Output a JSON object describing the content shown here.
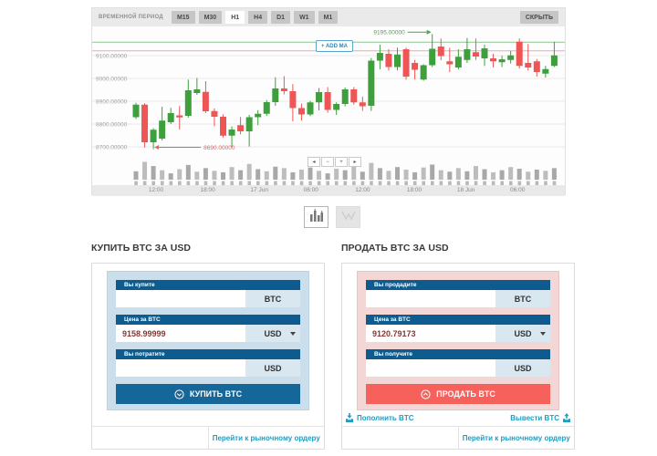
{
  "toolbar": {
    "label": "ВРЕМЕННОЙ ПЕРИОД",
    "periods": [
      "M15",
      "M30",
      "H1",
      "H4",
      "D1",
      "W1",
      "M1"
    ],
    "active_period": "H1",
    "hide_button": "СКРЫТЬ"
  },
  "chart": {
    "add_ma_button": "+ ADD MA",
    "nav_buttons": [
      "◂",
      "−",
      "+",
      "▸"
    ]
  },
  "chart_data": {
    "type": "candlestick",
    "colors": {
      "up": "#3da03d",
      "down": "#ee5555",
      "volume_dark": "#a8a8a8",
      "volume_light": "#bdbdbd",
      "grid": "#e9e9e9",
      "axis_text": "#a3a3a3"
    },
    "y_axis": {
      "ticks": [
        9100,
        9000,
        8900,
        8800,
        8700
      ],
      "labels": [
        "9100.00000",
        "9000.00000",
        "8900.00000",
        "8800.00000",
        "8700.00000"
      ]
    },
    "x_axis": {
      "labels": [
        "12:00",
        "18:00",
        "17 Jun",
        "06:00",
        "12:00",
        "18:00",
        "18 Jun",
        "06:00"
      ]
    },
    "hlines": [
      {
        "price": 9158.99999,
        "color": "#8fc48f"
      },
      {
        "price": 9120.79173,
        "color": "#f0a8a8"
      }
    ],
    "annotations": [
      {
        "text": "9195.00000",
        "price": 9195,
        "candle_index": 34,
        "direction": "right",
        "color": "#55a055"
      },
      {
        "text": "8690.00000",
        "price": 8690,
        "candle_index": 2,
        "direction": "left",
        "color": "#e06666"
      }
    ],
    "candles": [
      [
        8830,
        8893,
        8822,
        8885
      ],
      [
        8885,
        8891,
        8697,
        8720
      ],
      [
        8720,
        8782,
        8690,
        8775
      ],
      [
        8736,
        8876,
        8728,
        8815
      ],
      [
        8808,
        8871,
        8800,
        8848
      ],
      [
        8838,
        8879,
        8776,
        8829
      ],
      [
        8836,
        8995,
        8828,
        8948
      ],
      [
        8936,
        9002,
        8928,
        8952
      ],
      [
        8941,
        8988,
        8848,
        8856
      ],
      [
        8857,
        8868,
        8790,
        8832
      ],
      [
        8832,
        8842,
        8741,
        8749
      ],
      [
        8749,
        8790,
        8700,
        8776
      ],
      [
        8795,
        8831,
        8755,
        8768
      ],
      [
        8768,
        8840,
        8701,
        8830
      ],
      [
        8830,
        8861,
        8795,
        8845
      ],
      [
        8845,
        8905,
        8836,
        8896
      ],
      [
        8896,
        9005,
        8880,
        8956
      ],
      [
        8956,
        9010,
        8930,
        8944
      ],
      [
        8944,
        8975,
        8812,
        8870
      ],
      [
        8870,
        8890,
        8815,
        8842
      ],
      [
        8842,
        8902,
        8835,
        8895
      ],
      [
        8895,
        8958,
        8860,
        8940
      ],
      [
        8940,
        8962,
        8850,
        8862
      ],
      [
        8862,
        8895,
        8840,
        8888
      ],
      [
        8888,
        8960,
        8878,
        8952
      ],
      [
        8952,
        8962,
        8885,
        8895
      ],
      [
        8895,
        8920,
        8858,
        8878
      ],
      [
        8880,
        9090,
        8858,
        9078
      ],
      [
        9078,
        9148,
        9040,
        9112
      ],
      [
        9108,
        9128,
        9035,
        9050
      ],
      [
        9050,
        9135,
        9035,
        9105
      ],
      [
        9128,
        9135,
        8995,
        9008
      ],
      [
        9068,
        9081,
        8995,
        9038
      ],
      [
        8995,
        9062,
        8990,
        9058
      ],
      [
        9058,
        9195,
        9050,
        9130
      ],
      [
        9140,
        9175,
        9080,
        9098
      ],
      [
        9075,
        9135,
        9028,
        9062
      ],
      [
        9048,
        9128,
        9039,
        9095
      ],
      [
        9081,
        9177,
        9068,
        9128
      ],
      [
        9115,
        9175,
        9081,
        9096
      ],
      [
        9088,
        9148,
        9055,
        9132
      ],
      [
        9088,
        9108,
        9048,
        9075
      ],
      [
        9071,
        9100,
        9050,
        9084
      ],
      [
        9081,
        9121,
        9065,
        9101
      ],
      [
        9161,
        9175,
        9044,
        9055
      ],
      [
        9068,
        9151,
        9035,
        9048
      ],
      [
        9075,
        9085,
        9008,
        9028
      ],
      [
        9021,
        9055,
        9004,
        9041
      ],
      [
        9055,
        9161,
        9050,
        9101
      ]
    ],
    "volumes": [
      40,
      85,
      65,
      45,
      30,
      50,
      70,
      38,
      55,
      42,
      35,
      60,
      45,
      75,
      50,
      40,
      62,
      55,
      35,
      48,
      58,
      42,
      30,
      52,
      45,
      68,
      38,
      80,
      55,
      42,
      60,
      48,
      35,
      58,
      72,
      45,
      38,
      55,
      40,
      65,
      50,
      35,
      45,
      60,
      52,
      38,
      48,
      42,
      55
    ]
  },
  "chart_type_toggle": {
    "options": [
      "candlestick",
      "line"
    ],
    "active": "candlestick"
  },
  "buy": {
    "title": "КУПИТЬ BTC ЗА USD",
    "fields": [
      {
        "label": "Вы купите",
        "value": "",
        "unit": "BTC"
      },
      {
        "label": "Цена за BTC",
        "value": "9158.99999",
        "unit": "USD"
      },
      {
        "label": "Вы потратите",
        "value": "",
        "unit": "USD"
      }
    ],
    "button_label": "КУПИТЬ BTC",
    "footer_link": "Перейти к рыночному ордеру"
  },
  "sell": {
    "title": "ПРОДАТЬ BTC ЗА USD",
    "fields": [
      {
        "label": "Вы продадите",
        "value": "",
        "unit": "BTC"
      },
      {
        "label": "Цена за BTC",
        "value": "9120.79173",
        "unit": "USD"
      },
      {
        "label": "Вы получите",
        "value": "",
        "unit": "USD"
      }
    ],
    "button_label": "ПРОДАТЬ BTC",
    "deposit_link": "Пополнить BTC",
    "withdraw_link": "Вывести BTC",
    "footer_link": "Перейти к рыночному ордеру"
  }
}
